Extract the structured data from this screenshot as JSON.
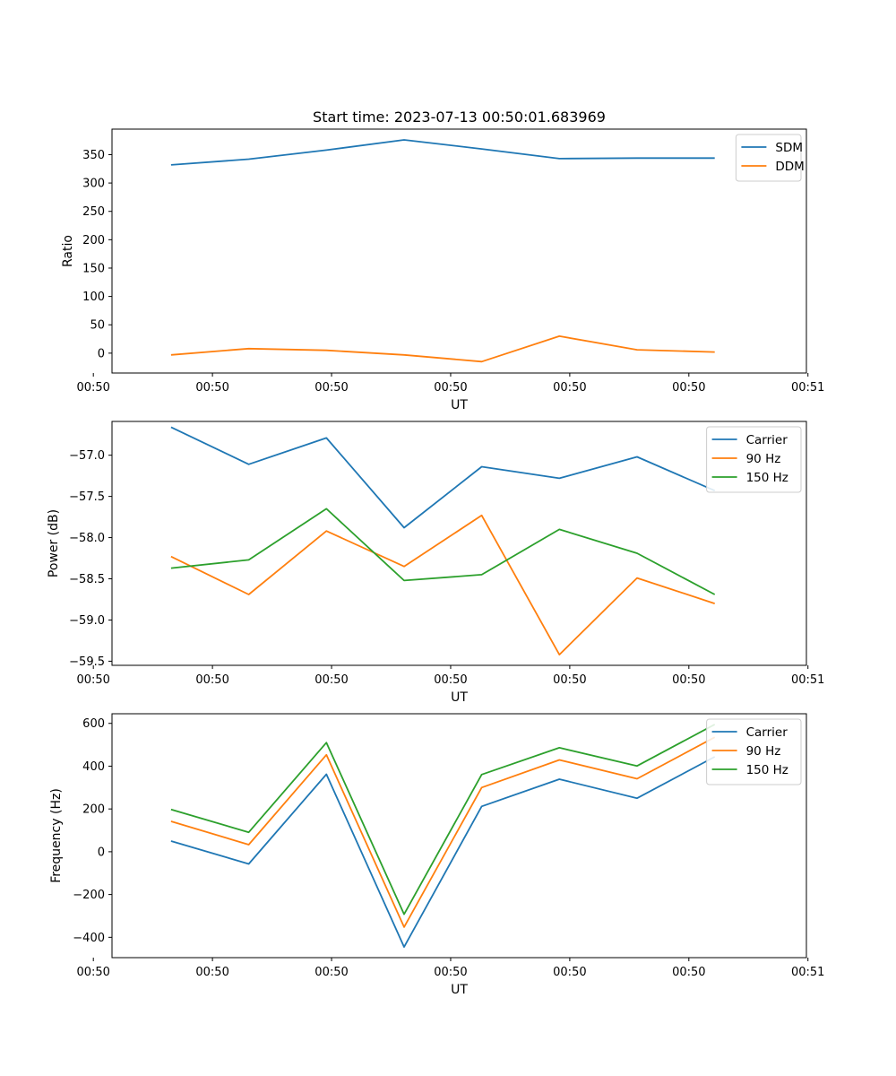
{
  "figure_title": "Start time: 2023-07-13 00:50:01.683969",
  "colors": {
    "blue": "#1f77b4",
    "orange": "#ff7f0e",
    "green": "#2ca02c"
  },
  "chart_data": [
    {
      "type": "line",
      "xlabel": "UT",
      "ylabel": "Ratio",
      "x": [
        1,
        2,
        3,
        4,
        5,
        6,
        7,
        8
      ],
      "xlim": [
        0.24,
        9.18
      ],
      "xticks": [
        {
          "x": 0,
          "label": "00:50"
        },
        {
          "x": 1.5333,
          "label": "00:50"
        },
        {
          "x": 3.0667,
          "label": "00:50"
        },
        {
          "x": 4.6,
          "label": "00:50"
        },
        {
          "x": 6.1333,
          "label": "00:50"
        },
        {
          "x": 7.6667,
          "label": "00:50"
        },
        {
          "x": 9.2,
          "label": "00:51"
        }
      ],
      "ylim": [
        -35,
        395
      ],
      "yticks": [
        0,
        50,
        100,
        150,
        200,
        250,
        300,
        350
      ],
      "series": [
        {
          "name": "SDM",
          "color": "#1f77b4",
          "values": [
            332,
            342,
            358,
            376,
            360,
            343,
            344,
            344
          ]
        },
        {
          "name": "DDM",
          "color": "#ff7f0e",
          "values": [
            -3,
            8,
            5,
            -3,
            -15,
            30,
            6,
            2
          ]
        }
      ],
      "legend": "upper-right"
    },
    {
      "type": "line",
      "xlabel": "UT",
      "ylabel": "Power (dB)",
      "x": [
        1,
        2,
        3,
        4,
        5,
        6,
        7,
        8
      ],
      "xlim": [
        0.24,
        9.18
      ],
      "xticks": [
        {
          "x": 0,
          "label": "00:50"
        },
        {
          "x": 1.5333,
          "label": "00:50"
        },
        {
          "x": 3.0667,
          "label": "00:50"
        },
        {
          "x": 4.6,
          "label": "00:50"
        },
        {
          "x": 6.1333,
          "label": "00:50"
        },
        {
          "x": 7.6667,
          "label": "00:50"
        },
        {
          "x": 9.2,
          "label": "00:51"
        }
      ],
      "ylim": [
        -59.55,
        -56.59
      ],
      "yticks": [
        -59.5,
        -59.0,
        -58.5,
        -58.0,
        -57.5,
        -57.0
      ],
      "ytick_labels": [
        "−59.5",
        "−59.0",
        "−58.5",
        "−58.0",
        "−57.5",
        "−57.0"
      ],
      "series": [
        {
          "name": "Carrier",
          "color": "#1f77b4",
          "values": [
            -56.66,
            -57.11,
            -56.79,
            -57.88,
            -57.14,
            -57.28,
            -57.02,
            -57.43
          ]
        },
        {
          "name": "90 Hz",
          "color": "#ff7f0e",
          "values": [
            -58.23,
            -58.69,
            -57.92,
            -58.35,
            -57.73,
            -59.42,
            -58.49,
            -58.8
          ]
        },
        {
          "name": "150 Hz",
          "color": "#2ca02c",
          "values": [
            -58.37,
            -58.27,
            -57.65,
            -58.52,
            -58.45,
            -57.9,
            -58.19,
            -58.69
          ]
        }
      ],
      "legend": "upper-right"
    },
    {
      "type": "line",
      "xlabel": "UT",
      "ylabel": "Frequency (Hz)",
      "x": [
        1,
        2,
        3,
        4,
        5,
        6,
        7,
        8
      ],
      "xlim": [
        0.24,
        9.18
      ],
      "xticks": [
        {
          "x": 0,
          "label": "00:50"
        },
        {
          "x": 1.5333,
          "label": "00:50"
        },
        {
          "x": 3.0667,
          "label": "00:50"
        },
        {
          "x": 4.6,
          "label": "00:50"
        },
        {
          "x": 6.1333,
          "label": "00:50"
        },
        {
          "x": 7.6667,
          "label": "00:50"
        },
        {
          "x": 9.2,
          "label": "00:51"
        }
      ],
      "ylim": [
        -495,
        645
      ],
      "yticks": [
        -400,
        -200,
        0,
        200,
        400,
        600
      ],
      "ytick_labels": [
        "−400",
        "−200",
        "0",
        "200",
        "400",
        "600"
      ],
      "series": [
        {
          "name": "Carrier",
          "color": "#1f77b4",
          "values": [
            50,
            -57,
            362,
            -445,
            212,
            339,
            250,
            444
          ]
        },
        {
          "name": "90 Hz",
          "color": "#ff7f0e",
          "values": [
            142,
            33,
            453,
            -352,
            300,
            429,
            341,
            535
          ]
        },
        {
          "name": "150 Hz",
          "color": "#2ca02c",
          "values": [
            198,
            91,
            510,
            -292,
            361,
            486,
            401,
            595
          ]
        }
      ],
      "legend": "upper-right"
    }
  ]
}
